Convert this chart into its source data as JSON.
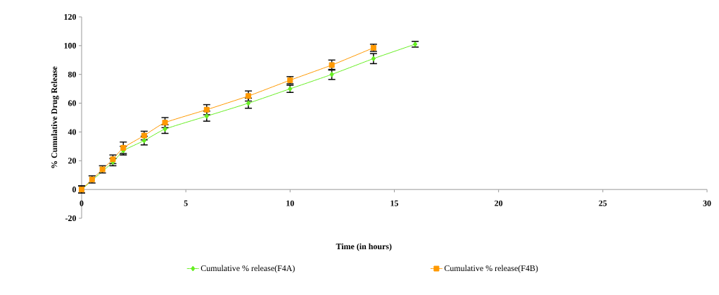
{
  "chart_data": {
    "type": "line",
    "xlabel": "Time (in hours)",
    "ylabel": "% Cumulative Drug Release",
    "xlim": [
      0,
      30
    ],
    "xticks": [
      0,
      5,
      10,
      15,
      20,
      25,
      30
    ],
    "ylim": [
      -20,
      120
    ],
    "yticks": [
      -20,
      0,
      20,
      40,
      60,
      80,
      100,
      120
    ],
    "grid": false,
    "legend": "bottom",
    "line_style": "solid",
    "series": [
      {
        "name": "Cumulative % release(F4A)",
        "color": "#66ee22",
        "marker": "diamond",
        "x": [
          0,
          0.5,
          1,
          1.5,
          2,
          3,
          4,
          6,
          8,
          10,
          12,
          14,
          16
        ],
        "values": [
          0,
          null,
          null,
          19,
          27,
          34,
          42,
          51,
          60,
          70,
          80,
          91,
          101
        ],
        "errors": [
          2.5,
          null,
          null,
          2.5,
          3,
          3,
          3,
          3.5,
          3.5,
          2.5,
          3.5,
          3.5,
          2
        ]
      },
      {
        "name": "Cumulative % release(F4B)",
        "color": "#ff9900",
        "marker": "square",
        "x": [
          0,
          0.5,
          1,
          1.5,
          2,
          3,
          4,
          6,
          8,
          10,
          12,
          14
        ],
        "values": [
          0,
          7,
          14,
          21,
          29,
          37.5,
          46.5,
          55.5,
          65,
          76,
          86.5,
          98.5
        ],
        "errors": [
          2.5,
          2.5,
          2.5,
          3,
          4,
          3,
          3.5,
          3.5,
          3.5,
          2.5,
          3.5,
          2.5
        ]
      }
    ]
  }
}
